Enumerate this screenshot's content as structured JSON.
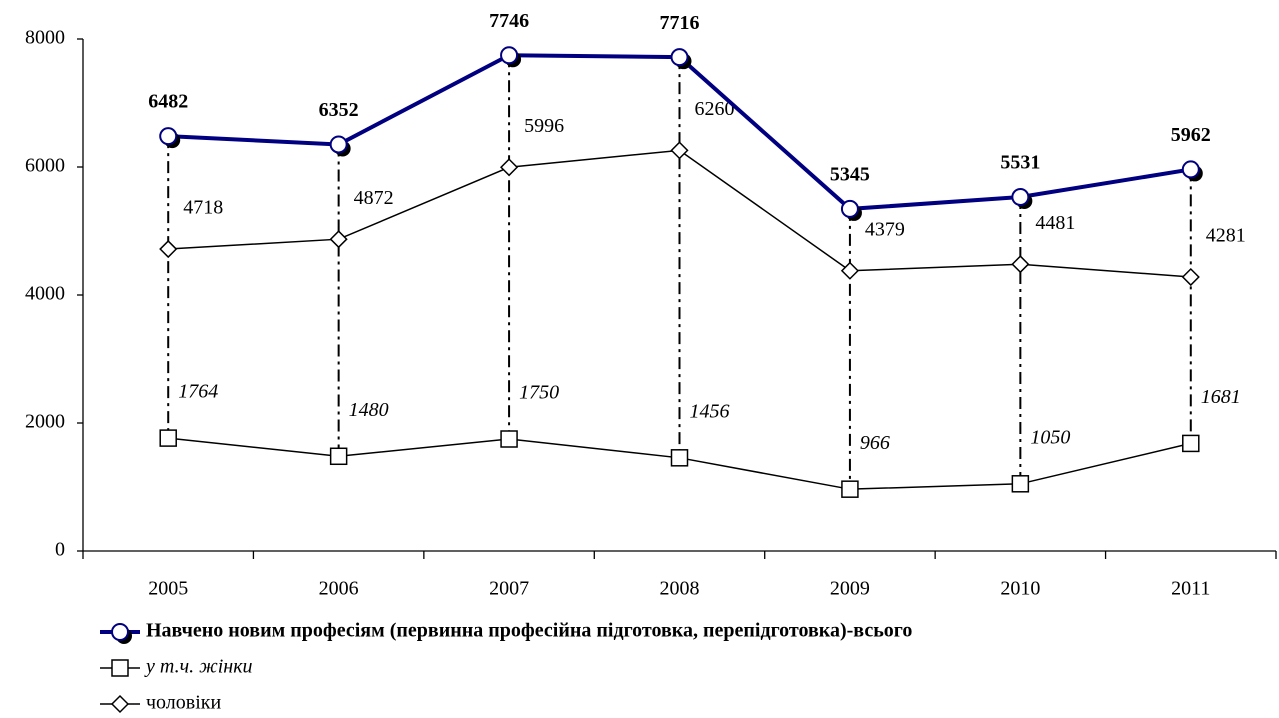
{
  "chart_data": {
    "type": "line",
    "categories": [
      "2005",
      "2006",
      "2007",
      "2008",
      "2009",
      "2010",
      "2011"
    ],
    "series": [
      {
        "name": "Навчено новим професіям (первинна професійна підготовка, перепідготовка)-всього",
        "color": "#000080",
        "marker": "circle",
        "values": [
          6482,
          6352,
          7746,
          7716,
          5345,
          5531,
          5962
        ]
      },
      {
        "name": "у т.ч. жінки",
        "color": "#000000",
        "marker": "square",
        "values": [
          1764,
          1480,
          1750,
          1456,
          966,
          1050,
          1681
        ]
      },
      {
        "name": "чоловіки",
        "color": "#000000",
        "marker": "diamond",
        "values": [
          4718,
          4872,
          5996,
          6260,
          4379,
          4481,
          4281
        ]
      }
    ],
    "ylim": [
      0,
      8000
    ],
    "yticks": [
      0,
      2000,
      4000,
      6000,
      8000
    ],
    "grid": false
  }
}
